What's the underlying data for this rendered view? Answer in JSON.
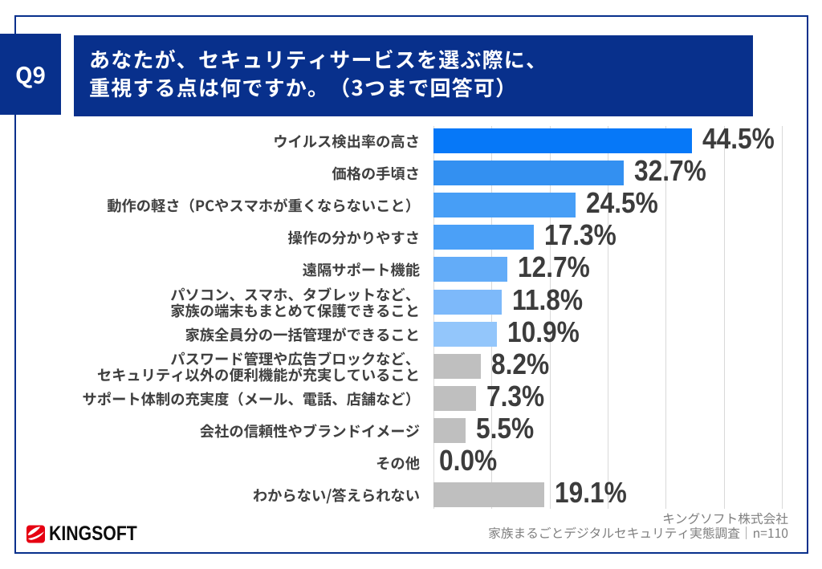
{
  "slide": {
    "question_badge": "Q9",
    "title_line1": "あなたが、セキュリティサービスを選ぶ際に、",
    "title_line2": "重視する点は何ですか。（3つまで回答可）"
  },
  "chart_data": {
    "type": "bar",
    "orientation": "horizontal",
    "unit": "%",
    "xlim": [
      0,
      60
    ],
    "gridline_interval": 10,
    "grid": "on",
    "categories": [
      "ウイルス検出率の高さ",
      "価格の手頃さ",
      "動作の軽さ（PCやスマホが重くならないこと）",
      "操作の分かりやすさ",
      "遠隔サポート機能",
      "パソコン、スマホ、タブレットなど、\n家族の端末もまとめて保護できること",
      "家族全員分の一括管理ができること",
      "パスワード管理や広告ブロックなど、\nセキュリティ以外の便利機能が充実していること",
      "サポート体制の充実度（メール、電話、店舗など）",
      "会社の信頼性やブランドイメージ",
      "その他",
      "わからない/答えられない"
    ],
    "values": [
      44.5,
      32.7,
      24.5,
      17.3,
      12.7,
      11.8,
      10.9,
      8.2,
      7.3,
      5.5,
      0.0,
      19.1
    ],
    "value_labels": [
      "44.5%",
      "32.7%",
      "24.5%",
      "17.3%",
      "12.7%",
      "11.8%",
      "10.9%",
      "8.2%",
      "7.3%",
      "5.5%",
      "0.0%",
      "19.1%"
    ],
    "bar_colors": [
      "#0678f8",
      "#3390f1",
      "#479ef6",
      "#4ba0f7",
      "#63acf8",
      "#7db9fa",
      "#93c6fb",
      "#bfbfbf",
      "#bfbfbf",
      "#bfbfbf",
      "#bfbfbf",
      "#bfbfbf"
    ]
  },
  "footer": {
    "logo_text": "KINGSOFT",
    "company": "キングソフト株式会社",
    "source": "家族まるごとデジタルセキュリティ実態調査｜n=110"
  },
  "colors": {
    "navy": "#08308c",
    "grid": "#d9d9d9",
    "category_text": "#404040",
    "value_text": "#3c3c3c",
    "footer_text": "#7f7f7f",
    "logo_red": "#e60012",
    "gray_bar": "#bfbfbf"
  }
}
